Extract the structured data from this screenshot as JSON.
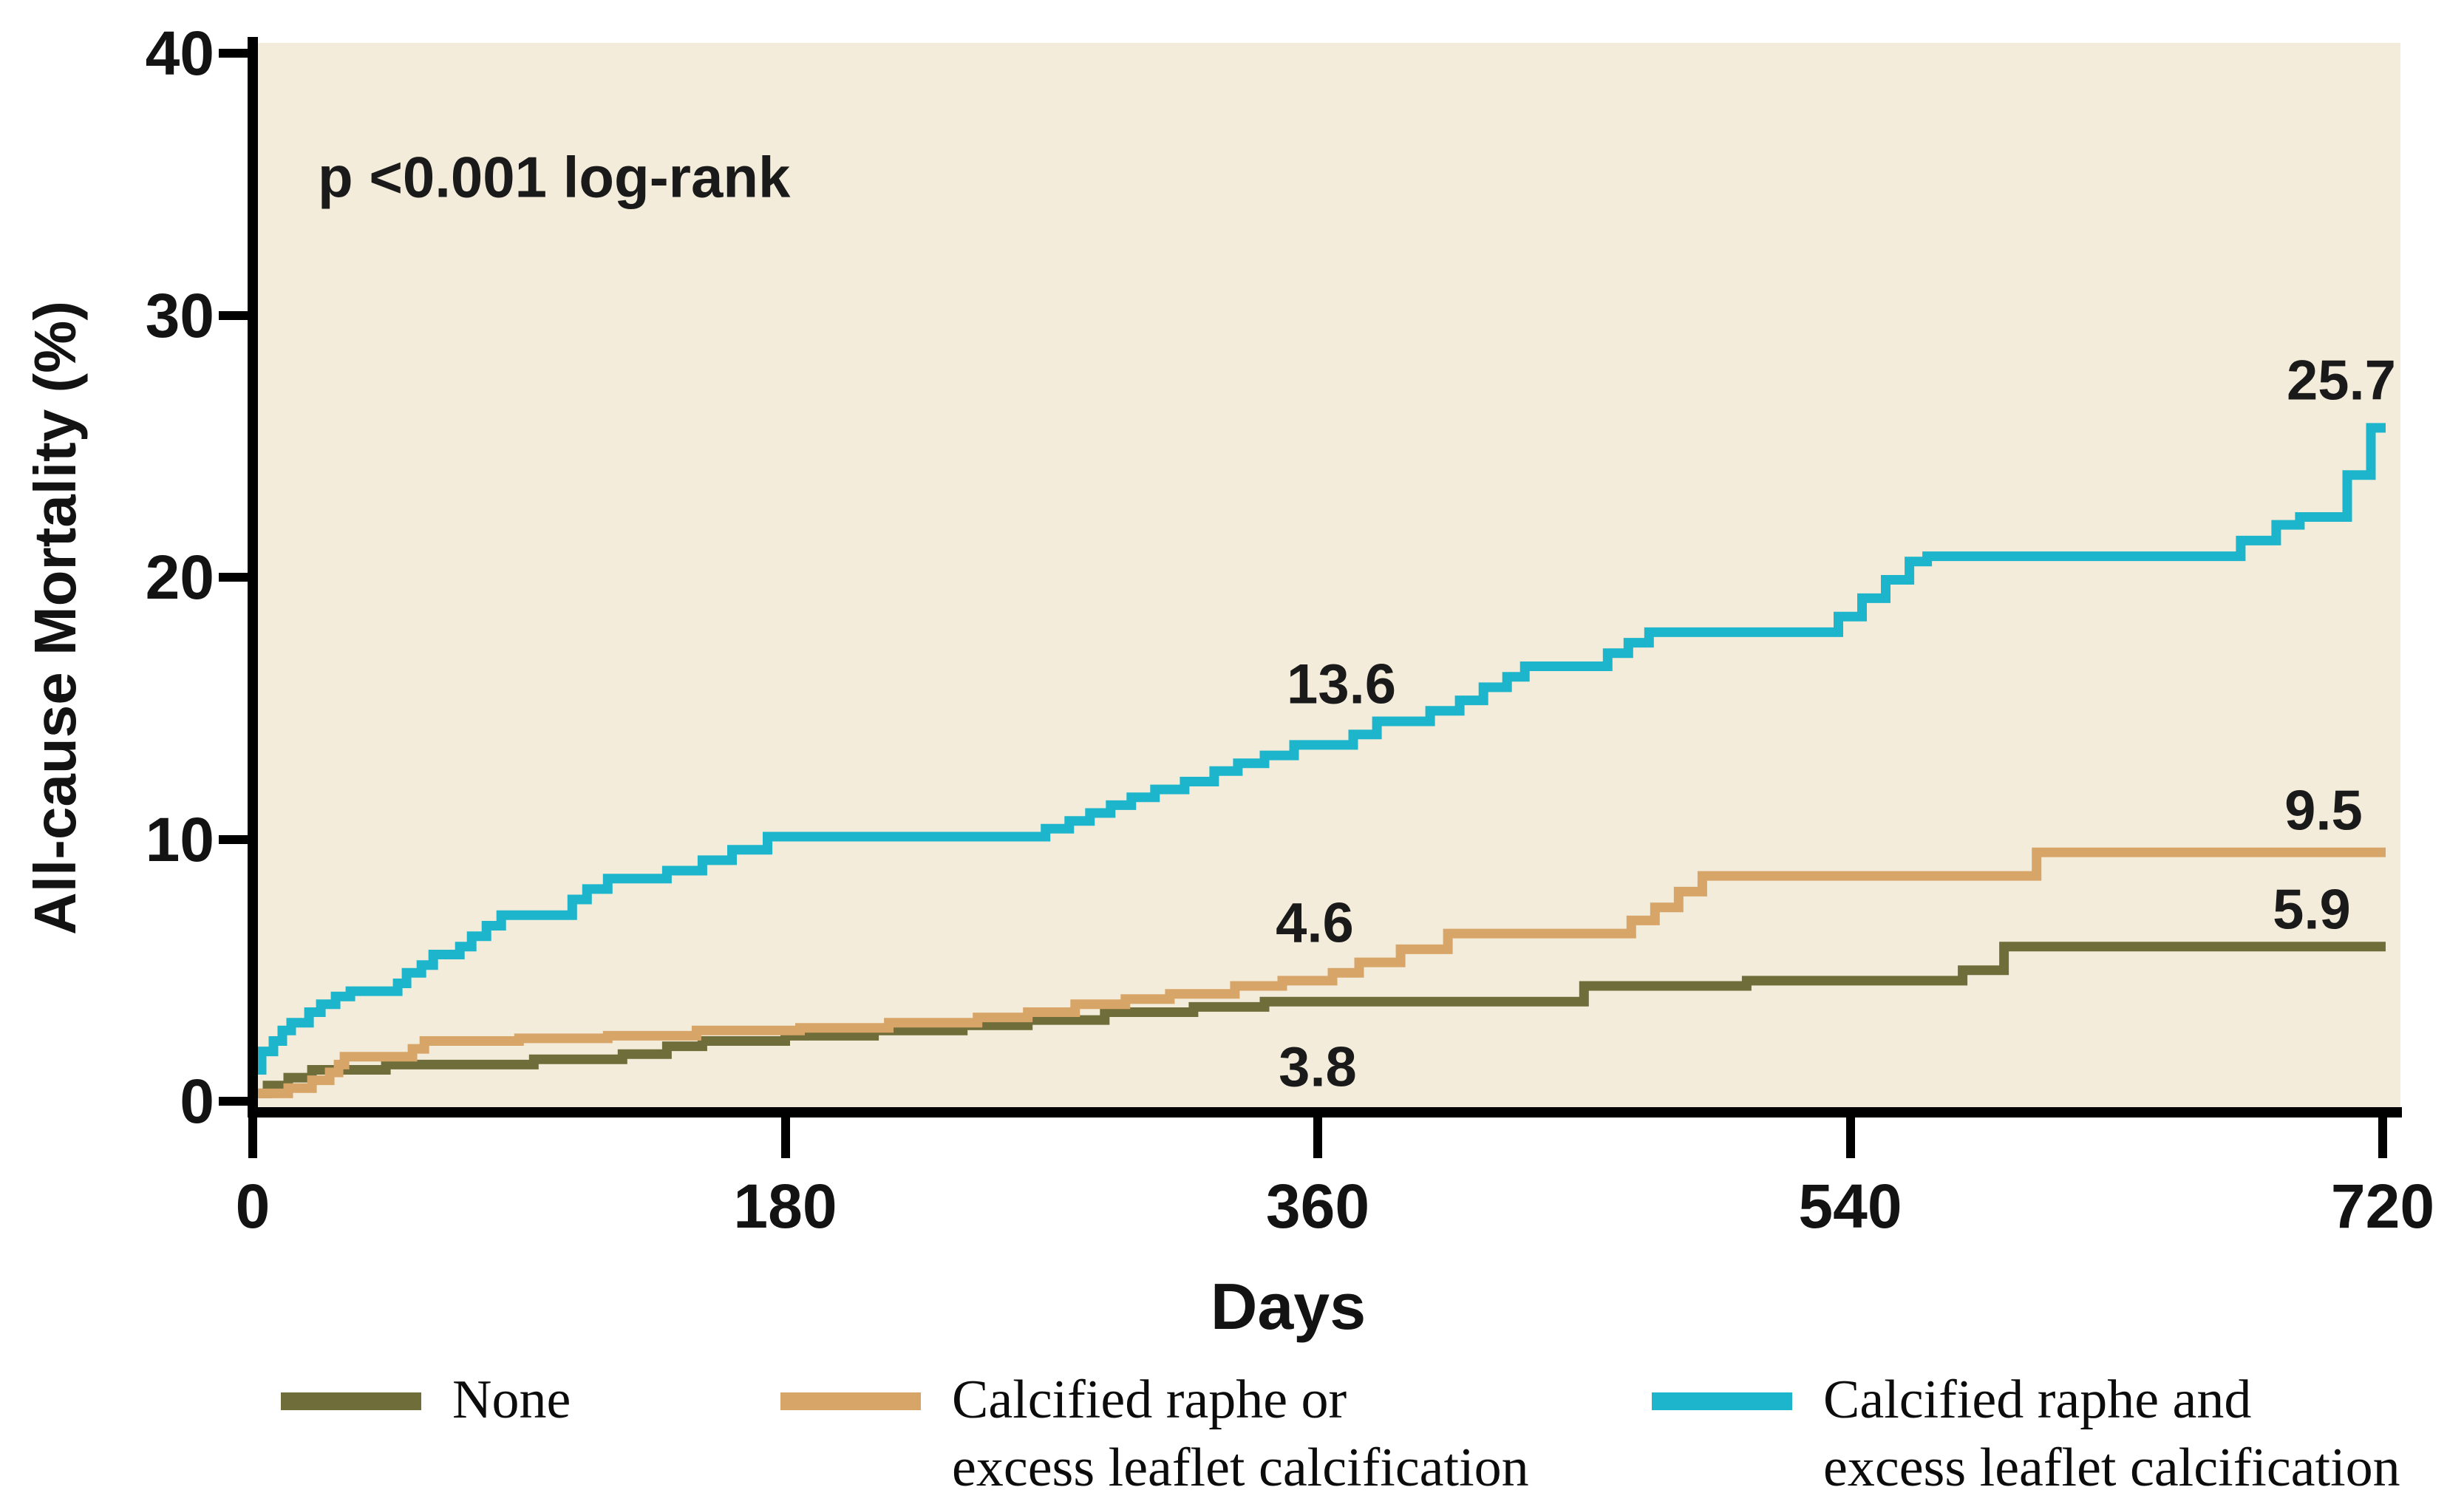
{
  "figure": {
    "p_value_annotation": "p <0.001 log-rank"
  },
  "axes": {
    "x": {
      "label": "Days",
      "tick_labels": [
        "0",
        "180",
        "360",
        "540",
        "720"
      ],
      "tick_values": [
        0,
        180,
        360,
        540,
        720
      ],
      "range": [
        0,
        720
      ]
    },
    "y": {
      "label": "All-cause Mortality (%)",
      "tick_labels": [
        "0",
        "10",
        "20",
        "30",
        "40"
      ],
      "tick_values": [
        0,
        10,
        20,
        30,
        40
      ],
      "range": [
        0,
        40
      ]
    }
  },
  "colors": {
    "page_background": "#ffffff",
    "plot_background": "#f3ecda",
    "axis": "#000000",
    "text": "#131313",
    "series_none": "#6f6d39",
    "series_raphe_or": "#d8a569",
    "series_raphe_and": "#1db5cb"
  },
  "legend": {
    "items": [
      {
        "id": "none",
        "lines": [
          "None"
        ],
        "color": "#6f6d39"
      },
      {
        "id": "raphe_or",
        "lines": [
          "Calcified raphe or",
          "excess leaflet calcification"
        ],
        "color": "#d8a569"
      },
      {
        "id": "raphe_and",
        "lines": [
          "Calcified raphe and",
          "excess leaflet calcification"
        ],
        "color": "#1db5cb"
      }
    ]
  },
  "chart_data": {
    "type": "line",
    "subtype": "kaplan-meier-step",
    "title": "",
    "xlabel": "Days",
    "ylabel": "All-cause Mortality (%)",
    "xlim": [
      0,
      720
    ],
    "ylim": [
      0,
      40
    ],
    "x_ticks": [
      0,
      180,
      360,
      540,
      720
    ],
    "y_ticks": [
      0,
      10,
      20,
      30,
      40
    ],
    "grid": false,
    "legend_position": "bottom",
    "annotation": "p <0.001 log-rank",
    "series": [
      {
        "name": "None",
        "id": "none",
        "color": "#6f6d39",
        "landmark_values": {
          "day_360": 3.8,
          "day_720": 5.9
        },
        "points": [
          [
            0,
            0.3
          ],
          [
            5,
            0.6
          ],
          [
            12,
            0.9
          ],
          [
            20,
            1.2
          ],
          [
            45,
            1.4
          ],
          [
            95,
            1.6
          ],
          [
            125,
            1.8
          ],
          [
            140,
            2.1
          ],
          [
            152,
            2.3
          ],
          [
            180,
            2.5
          ],
          [
            210,
            2.7
          ],
          [
            240,
            2.9
          ],
          [
            262,
            3.1
          ],
          [
            288,
            3.4
          ],
          [
            318,
            3.6
          ],
          [
            342,
            3.8
          ],
          [
            450,
            4.4
          ],
          [
            505,
            4.6
          ],
          [
            578,
            5.0
          ],
          [
            592,
            5.9
          ],
          [
            721,
            5.9
          ]
        ]
      },
      {
        "name": "Calcified raphe or excess leaflet calcification",
        "id": "raphe_or",
        "color": "#d8a569",
        "landmark_values": {
          "day_360": 4.6,
          "day_720": 9.5
        },
        "points": [
          [
            0,
            0.3
          ],
          [
            12,
            0.5
          ],
          [
            20,
            0.8
          ],
          [
            26,
            1.1
          ],
          [
            29,
            1.4
          ],
          [
            31,
            1.7
          ],
          [
            54,
            2.0
          ],
          [
            58,
            2.3
          ],
          [
            90,
            2.4
          ],
          [
            120,
            2.5
          ],
          [
            150,
            2.7
          ],
          [
            185,
            2.8
          ],
          [
            215,
            3.0
          ],
          [
            245,
            3.2
          ],
          [
            262,
            3.4
          ],
          [
            278,
            3.7
          ],
          [
            295,
            3.9
          ],
          [
            310,
            4.1
          ],
          [
            332,
            4.4
          ],
          [
            348,
            4.6
          ],
          [
            365,
            4.9
          ],
          [
            374,
            5.3
          ],
          [
            388,
            5.8
          ],
          [
            404,
            6.4
          ],
          [
            466,
            6.9
          ],
          [
            474,
            7.4
          ],
          [
            482,
            8.0
          ],
          [
            490,
            8.6
          ],
          [
            603,
            9.5
          ],
          [
            721,
            9.5
          ]
        ]
      },
      {
        "name": "Calcified raphe and excess leaflet calcification",
        "id": "raphe_and",
        "color": "#1db5cb",
        "landmark_values": {
          "day_360": 13.6,
          "day_720": 25.7
        },
        "points": [
          [
            0,
            1.2
          ],
          [
            3,
            1.9
          ],
          [
            7,
            2.3
          ],
          [
            10,
            2.7
          ],
          [
            13,
            3.0
          ],
          [
            19,
            3.4
          ],
          [
            23,
            3.7
          ],
          [
            28,
            4.0
          ],
          [
            33,
            4.2
          ],
          [
            49,
            4.5
          ],
          [
            52,
            4.9
          ],
          [
            57,
            5.2
          ],
          [
            61,
            5.6
          ],
          [
            70,
            5.9
          ],
          [
            74,
            6.3
          ],
          [
            79,
            6.7
          ],
          [
            84,
            7.1
          ],
          [
            108,
            7.7
          ],
          [
            113,
            8.1
          ],
          [
            120,
            8.5
          ],
          [
            140,
            8.8
          ],
          [
            152,
            9.2
          ],
          [
            162,
            9.6
          ],
          [
            174,
            10.1
          ],
          [
            268,
            10.4
          ],
          [
            276,
            10.7
          ],
          [
            283,
            11.0
          ],
          [
            290,
            11.3
          ],
          [
            297,
            11.6
          ],
          [
            305,
            11.9
          ],
          [
            315,
            12.2
          ],
          [
            325,
            12.6
          ],
          [
            333,
            12.9
          ],
          [
            342,
            13.2
          ],
          [
            352,
            13.6
          ],
          [
            372,
            14.0
          ],
          [
            380,
            14.5
          ],
          [
            398,
            14.9
          ],
          [
            408,
            15.3
          ],
          [
            416,
            15.8
          ],
          [
            424,
            16.2
          ],
          [
            430,
            16.6
          ],
          [
            458,
            17.1
          ],
          [
            465,
            17.5
          ],
          [
            472,
            17.9
          ],
          [
            536,
            18.5
          ],
          [
            544,
            19.2
          ],
          [
            552,
            19.9
          ],
          [
            560,
            20.6
          ],
          [
            566,
            20.8
          ],
          [
            672,
            21.4
          ],
          [
            684,
            22.0
          ],
          [
            692,
            22.3
          ],
          [
            708,
            23.9
          ],
          [
            716,
            25.7
          ],
          [
            721,
            25.7
          ]
        ]
      }
    ],
    "value_labels": [
      {
        "text": "13.6",
        "series": "raphe_and",
        "day": 368,
        "value": 15.9
      },
      {
        "text": "25.7",
        "series": "raphe_and",
        "day": 706,
        "value": 27.5
      },
      {
        "text": "4.6",
        "series": "raphe_or",
        "day": 359,
        "value": 6.8
      },
      {
        "text": "9.5",
        "series": "raphe_or",
        "day": 700,
        "value": 11.1
      },
      {
        "text": "3.8",
        "series": "none",
        "day": 360,
        "value": 1.3
      },
      {
        "text": "5.9",
        "series": "none",
        "day": 696,
        "value": 7.3
      }
    ]
  }
}
